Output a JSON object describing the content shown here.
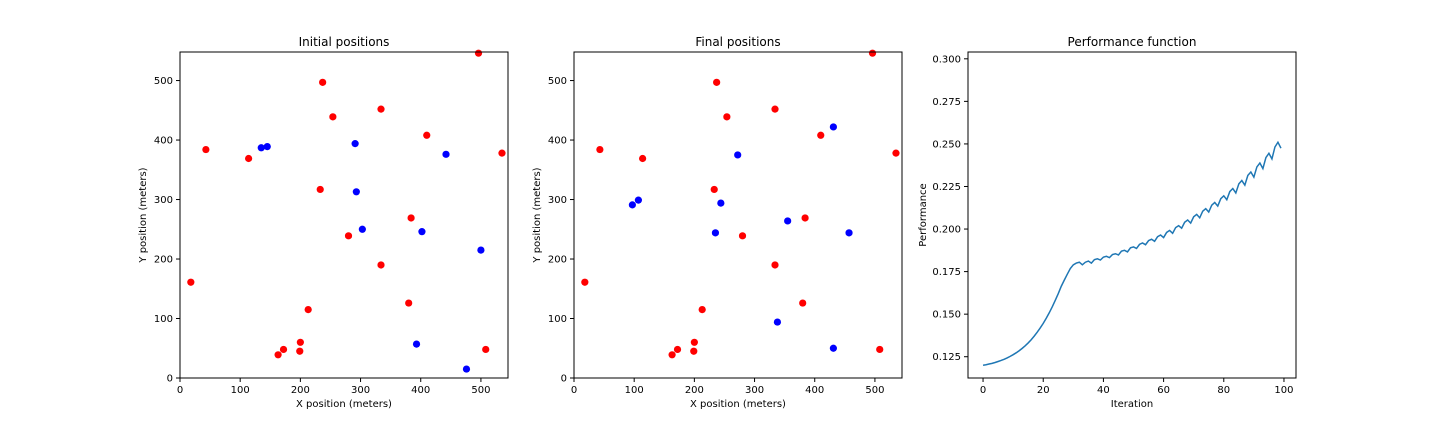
{
  "chart_data": [
    {
      "type": "scatter",
      "title": "Initial positions",
      "xlabel": "X position (meters)",
      "ylabel": "Y position (meters)",
      "xlim": [
        0,
        545
      ],
      "ylim": [
        0,
        548
      ],
      "xticks": [
        0,
        100,
        200,
        300,
        400,
        500
      ],
      "yticks": [
        0,
        100,
        200,
        300,
        400,
        500
      ],
      "grid": false,
      "series": [
        {
          "color": "#ff0000",
          "points": [
            [
              18,
              161
            ],
            [
              43,
              384
            ],
            [
              114,
              369
            ],
            [
              163,
              39
            ],
            [
              172,
              48
            ],
            [
              199,
              45
            ],
            [
              200,
              60
            ],
            [
              213,
              115
            ],
            [
              233,
              317
            ],
            [
              237,
              497
            ],
            [
              254,
              439
            ],
            [
              280,
              239
            ],
            [
              334,
              452
            ],
            [
              334,
              190
            ],
            [
              380,
              126
            ],
            [
              384,
              269
            ],
            [
              410,
              408
            ],
            [
              496,
              546
            ],
            [
              508,
              48
            ],
            [
              535,
              378
            ]
          ]
        },
        {
          "color": "#0000ff",
          "points": [
            [
              135,
              387
            ],
            [
              145,
              389
            ],
            [
              291,
              394
            ],
            [
              293,
              313
            ],
            [
              303,
              250
            ],
            [
              393,
              57
            ],
            [
              402,
              246
            ],
            [
              442,
              376
            ],
            [
              476,
              15
            ],
            [
              500,
              215
            ]
          ]
        }
      ]
    },
    {
      "type": "scatter",
      "title": "Final positions",
      "xlabel": "X position (meters)",
      "ylabel": "Y position (meters)",
      "xlim": [
        0,
        545
      ],
      "ylim": [
        0,
        548
      ],
      "xticks": [
        0,
        100,
        200,
        300,
        400,
        500
      ],
      "yticks": [
        0,
        100,
        200,
        300,
        400,
        500
      ],
      "grid": false,
      "series": [
        {
          "color": "#ff0000",
          "points": [
            [
              18,
              161
            ],
            [
              43,
              384
            ],
            [
              114,
              369
            ],
            [
              163,
              39
            ],
            [
              172,
              48
            ],
            [
              199,
              45
            ],
            [
              200,
              60
            ],
            [
              213,
              115
            ],
            [
              233,
              317
            ],
            [
              237,
              497
            ],
            [
              254,
              439
            ],
            [
              280,
              239
            ],
            [
              334,
              452
            ],
            [
              334,
              190
            ],
            [
              380,
              126
            ],
            [
              384,
              269
            ],
            [
              410,
              408
            ],
            [
              496,
              546
            ],
            [
              508,
              48
            ],
            [
              535,
              378
            ]
          ]
        },
        {
          "color": "#0000ff",
          "points": [
            [
              97,
              291
            ],
            [
              107,
              299
            ],
            [
              235,
              244
            ],
            [
              244,
              294
            ],
            [
              272,
              375
            ],
            [
              338,
              94
            ],
            [
              355,
              264
            ],
            [
              431,
              422
            ],
            [
              431,
              50
            ],
            [
              457,
              244
            ]
          ]
        }
      ]
    },
    {
      "type": "line",
      "title": "Performance function",
      "xlabel": "Iteration",
      "ylabel": "Performance",
      "xlim": [
        -5,
        104
      ],
      "ylim": [
        0.1125,
        0.304
      ],
      "xticks": [
        0,
        20,
        40,
        60,
        80,
        100
      ],
      "yticks": [
        0.125,
        0.15,
        0.175,
        0.2,
        0.225,
        0.25,
        0.275,
        0.3
      ],
      "ytick_labels": [
        "0.125",
        "0.150",
        "0.175",
        "0.200",
        "0.225",
        "0.250",
        "0.275",
        "0.300"
      ],
      "grid": false,
      "color": "#1f77b4",
      "x": [
        0,
        1,
        2,
        3,
        4,
        5,
        6,
        7,
        8,
        9,
        10,
        11,
        12,
        13,
        14,
        15,
        16,
        17,
        18,
        19,
        20,
        21,
        22,
        23,
        24,
        25,
        26,
        27,
        28,
        29,
        30,
        31,
        32,
        33,
        34,
        35,
        36,
        37,
        38,
        39,
        40,
        41,
        42,
        43,
        44,
        45,
        46,
        47,
        48,
        49,
        50,
        51,
        52,
        53,
        54,
        55,
        56,
        57,
        58,
        59,
        60,
        61,
        62,
        63,
        64,
        65,
        66,
        67,
        68,
        69,
        70,
        71,
        72,
        73,
        74,
        75,
        76,
        77,
        78,
        79,
        80,
        81,
        82,
        83,
        84,
        85,
        86,
        87,
        88,
        89,
        90,
        91,
        92,
        93,
        94,
        95,
        96,
        97,
        98,
        99
      ],
      "values": [
        0.12,
        0.1203,
        0.1207,
        0.1211,
        0.1216,
        0.1222,
        0.1228,
        0.1235,
        0.1243,
        0.1252,
        0.1262,
        0.1273,
        0.1285,
        0.1299,
        0.1314,
        0.1331,
        0.135,
        0.1371,
        0.1394,
        0.1419,
        0.1446,
        0.1476,
        0.1508,
        0.1543,
        0.1581,
        0.1621,
        0.1664,
        0.17,
        0.1735,
        0.1768,
        0.179,
        0.18,
        0.1805,
        0.179,
        0.1805,
        0.1812,
        0.18,
        0.182,
        0.1825,
        0.1818,
        0.1835,
        0.184,
        0.1832,
        0.185,
        0.1855,
        0.1848,
        0.187,
        0.1875,
        0.1866,
        0.189,
        0.1895,
        0.1886,
        0.191,
        0.1918,
        0.1908,
        0.1932,
        0.194,
        0.1928,
        0.1955,
        0.1965,
        0.195,
        0.198,
        0.1992,
        0.1975,
        0.2008,
        0.202,
        0.2005,
        0.204,
        0.2053,
        0.2035,
        0.2072,
        0.2086,
        0.2066,
        0.2105,
        0.212,
        0.21,
        0.214,
        0.2156,
        0.2135,
        0.2178,
        0.2195,
        0.2172,
        0.222,
        0.2238,
        0.2212,
        0.2265,
        0.2285,
        0.2258,
        0.2315,
        0.2335,
        0.2305,
        0.2365,
        0.2388,
        0.2355,
        0.242,
        0.2445,
        0.2412,
        0.2482,
        0.251,
        0.2475
      ]
    }
  ]
}
